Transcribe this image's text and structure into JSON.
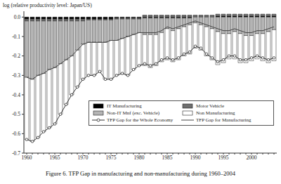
{
  "chart_data": {
    "type": "bar",
    "title": "Figure 6. TFP Gap in manufacturing and non-manufacturing during 1960–2004",
    "y_label": "log (relative productivity level: Japan/US)",
    "stacked": true,
    "legend": "lower right",
    "grid": false,
    "categories": [
      "1960",
      null,
      null,
      null,
      null,
      "1965",
      null,
      null,
      null,
      null,
      "1970",
      null,
      null,
      null,
      null,
      "1975",
      null,
      null,
      null,
      null,
      "1980",
      null,
      null,
      null,
      null,
      "1985",
      null,
      null,
      null,
      null,
      "1990",
      null,
      null,
      null,
      null,
      "1995",
      null,
      null,
      null,
      null,
      "2000",
      null,
      null,
      null,
      null
    ],
    "ylim": [
      -0.7,
      0.03
    ],
    "yticks": [
      -0.7,
      -0.6,
      -0.5,
      -0.4,
      -0.3,
      -0.2,
      -0.1,
      {
        "value": 0,
        "label": "0.0"
      }
    ],
    "series": [
      {
        "name": "IT Manufacturing",
        "type": "bar",
        "color": "#000000",
        "values": [
          -0.01,
          -0.01,
          -0.01,
          -0.01,
          -0.01,
          -0.01,
          -0.01,
          -0.01,
          -0.01,
          -0.01,
          -0.01,
          -0.01,
          -0.01,
          -0.01,
          -0.01,
          -0.01,
          -0.005,
          -0.005,
          -0.005,
          -0.005,
          -0.005,
          -0.005,
          -0.005,
          -0.005,
          -0.005,
          -0.005,
          -0.005,
          -0.005,
          -0.005,
          -0.005,
          0,
          0,
          0,
          0,
          0.005,
          0.005,
          0.005,
          0.005,
          0.005,
          0.005,
          0.005,
          0.005,
          0.005,
          0.005,
          0.005
        ]
      },
      {
        "name": "Motor Vehicle",
        "type": "bar",
        "color": "#6e6e6e",
        "values": [
          -0.01,
          -0.01,
          -0.01,
          -0.01,
          -0.01,
          -0.01,
          -0.01,
          -0.01,
          -0.01,
          -0.01,
          -0.01,
          -0.005,
          -0.005,
          -0.005,
          -0.005,
          -0.005,
          -0.005,
          -0.005,
          -0.005,
          -0.005,
          -0.005,
          0.01,
          0.01,
          0.01,
          0.01,
          0.01,
          0.01,
          0.01,
          0.01,
          0.01,
          0.01,
          0.01,
          0.01,
          0.01,
          0.01,
          0.01,
          0.01,
          0.01,
          0.01,
          0.01,
          0.01,
          0.01,
          0.01,
          0.01,
          0.01
        ]
      },
      {
        "name": "Non-IT Mnf (exc. Vehicle)",
        "type": "bar",
        "color": "#b4b4b4",
        "values": [
          -0.29,
          -0.3,
          -0.28,
          -0.27,
          -0.25,
          -0.24,
          -0.22,
          -0.2,
          -0.18,
          -0.15,
          -0.12,
          -0.115,
          -0.115,
          -0.115,
          -0.115,
          -0.105,
          -0.11,
          -0.1,
          -0.09,
          -0.08,
          -0.07,
          -0.085,
          -0.085,
          -0.085,
          -0.075,
          -0.055,
          -0.065,
          -0.055,
          -0.045,
          -0.035,
          -0.03,
          -0.04,
          -0.05,
          -0.06,
          -0.075,
          -0.085,
          -0.085,
          -0.075,
          -0.085,
          -0.095,
          -0.095,
          -0.085,
          -0.085,
          -0.075,
          -0.065
        ]
      },
      {
        "name": "Non Manufacturing",
        "type": "bar",
        "color": "#ffffff",
        "values": [
          -0.32,
          -0.32,
          -0.32,
          -0.3,
          -0.3,
          -0.29,
          -0.26,
          -0.23,
          -0.2,
          -0.19,
          -0.18,
          -0.17,
          -0.17,
          -0.15,
          -0.19,
          -0.2,
          -0.18,
          -0.18,
          -0.2,
          -0.18,
          -0.17,
          -0.16,
          -0.17,
          -0.16,
          -0.15,
          -0.16,
          -0.16,
          -0.16,
          -0.15,
          -0.15,
          -0.13,
          -0.13,
          -0.15,
          -0.16,
          -0.17,
          -0.15,
          -0.13,
          -0.14,
          -0.15,
          -0.14,
          -0.13,
          -0.13,
          -0.14,
          -0.16,
          -0.16
        ]
      },
      {
        "name": "TFP Gap for the Whole Economy",
        "type": "line",
        "marker": "circle",
        "color": "#333333",
        "values": [
          -0.63,
          -0.64,
          -0.62,
          -0.59,
          -0.57,
          -0.55,
          -0.5,
          -0.45,
          -0.4,
          -0.36,
          -0.32,
          -0.3,
          -0.3,
          -0.28,
          -0.32,
          -0.32,
          -0.3,
          -0.29,
          -0.3,
          -0.27,
          -0.25,
          -0.24,
          -0.25,
          -0.24,
          -0.22,
          -0.21,
          -0.22,
          -0.21,
          -0.19,
          -0.18,
          -0.15,
          -0.16,
          -0.19,
          -0.21,
          -0.23,
          -0.22,
          -0.2,
          -0.2,
          -0.22,
          -0.22,
          -0.21,
          -0.2,
          -0.21,
          -0.22,
          -0.21
        ]
      },
      {
        "name": "TFP Gap for Manufacturing",
        "type": "line",
        "marker": "none",
        "color": "#444444",
        "values": [
          -0.31,
          -0.32,
          -0.3,
          -0.29,
          -0.27,
          -0.26,
          -0.24,
          -0.22,
          -0.2,
          -0.17,
          -0.14,
          -0.13,
          -0.13,
          -0.13,
          -0.13,
          -0.12,
          -0.12,
          -0.11,
          -0.1,
          -0.09,
          -0.08,
          -0.08,
          -0.08,
          -0.08,
          -0.07,
          -0.05,
          -0.06,
          -0.05,
          -0.04,
          -0.03,
          -0.02,
          -0.03,
          -0.04,
          -0.05,
          -0.06,
          -0.07,
          -0.07,
          -0.06,
          -0.07,
          -0.08,
          -0.08,
          -0.07,
          -0.07,
          -0.06,
          -0.05
        ]
      }
    ]
  }
}
